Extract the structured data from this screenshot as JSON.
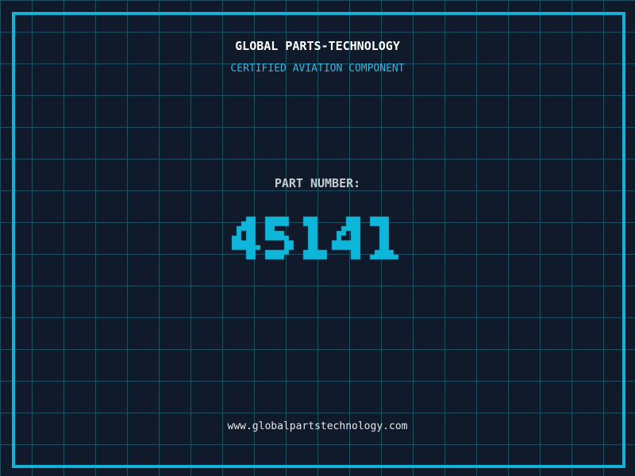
{
  "theme": {
    "background_color": "#111a2b",
    "grid_color": "#1e4f63",
    "border_color": "#14b1d6"
  },
  "header": {
    "title": "GLOBAL PARTS-TECHNOLOGY",
    "title_color": "#ffffff",
    "subtitle": "CERTIFIED AVIATION COMPONENT",
    "subtitle_color": "#2fb9dd"
  },
  "part": {
    "label": "PART NUMBER:",
    "label_color": "#c3ccd3",
    "number": "45141",
    "number_color": "#0eb6da"
  },
  "footer": {
    "url": "www.globalpartstechnology.com",
    "url_color": "#e4e8eb"
  }
}
